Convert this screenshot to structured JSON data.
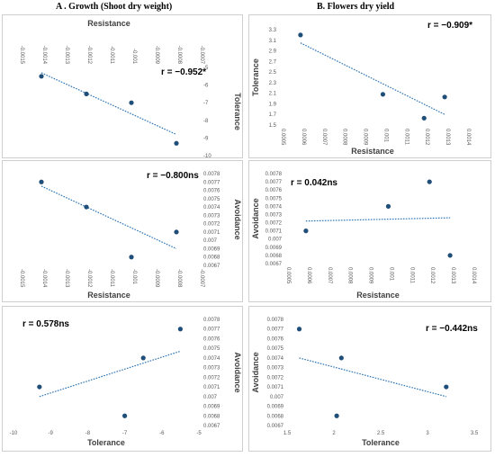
{
  "column_titles": [
    "A . Growth (Shoot dry weight)",
    "B. Flowers dry yield"
  ],
  "colors": {
    "point": "#1f4e79",
    "trend": "#2e75b6",
    "frame": "#cfcfcf",
    "text": "#595959"
  },
  "chart_data": [
    {
      "type": "scatter",
      "title": "",
      "xlabel": "Resistance",
      "ylabel": "Tolerance",
      "xlim": [
        -0.0015,
        -0.0007
      ],
      "ylim": [
        -10,
        -5
      ],
      "x_axis_position": "top",
      "y_axis_position": "right",
      "x_ticks": [
        "-0.0015",
        "-0.0014",
        "-0.0013",
        "-0.0012",
        "-0.0011",
        "-0.001",
        "-0.0009",
        "-0.0008",
        "-0.0007"
      ],
      "y_ticks": [
        "-5",
        "-6",
        "-7",
        "-8",
        "-9",
        "-10"
      ],
      "points": [
        {
          "x": -0.0014,
          "y": -5.5
        },
        {
          "x": -0.0012,
          "y": -6.5
        },
        {
          "x": -0.001,
          "y": -7.0
        },
        {
          "x": -0.0008,
          "y": -9.3
        }
      ],
      "trendline": {
        "x": [
          -0.0014,
          -0.0008
        ],
        "y": [
          -5.3,
          -8.8
        ]
      },
      "annotation": "r = −0.952*",
      "grid": false
    },
    {
      "type": "scatter",
      "title": "",
      "xlabel": "Resistance",
      "ylabel": "Tolerance",
      "xlim": [
        0.0005,
        0.0014
      ],
      "ylim": [
        1.5,
        3.3
      ],
      "x_axis_position": "bottom",
      "y_axis_position": "left",
      "x_ticks": [
        "0.0005",
        "0.0006",
        "0.0007",
        "0.0008",
        "0.0009",
        "0.001",
        "0.0011",
        "0.0012",
        "0.0013",
        "0.0014"
      ],
      "y_ticks": [
        "3.3",
        "3.1",
        "2.9",
        "2.7",
        "2.5",
        "2.3",
        "2.1",
        "1.9",
        "1.7",
        "1.5"
      ],
      "points": [
        {
          "x": 0.0006,
          "y": 3.2
        },
        {
          "x": 0.001,
          "y": 2.08
        },
        {
          "x": 0.0012,
          "y": 1.63
        },
        {
          "x": 0.0013,
          "y": 2.03
        }
      ],
      "trendline": {
        "x": [
          0.0006,
          0.0013
        ],
        "y": [
          3.05,
          1.7
        ]
      },
      "annotation": "r = −0.909*",
      "grid": false
    },
    {
      "type": "scatter",
      "title": "",
      "xlabel": "Resistance",
      "ylabel": "Avoidance",
      "xlim": [
        -0.0015,
        -0.0007
      ],
      "ylim": [
        0.0067,
        0.0078
      ],
      "x_axis_position": "bottom",
      "y_axis_position": "right",
      "x_ticks": [
        "-0.0015",
        "-0.0014",
        "-0.0013",
        "-0.0012",
        "-0.0011",
        "-0.001",
        "-0.0009",
        "-0.0008",
        "-0.0007"
      ],
      "y_ticks": [
        "0.0078",
        "0.0077",
        "0.0076",
        "0.0075",
        "0.0074",
        "0.0073",
        "0.0072",
        "0.0071",
        "0.007",
        "0.0069",
        "0.0068",
        "0.0067"
      ],
      "points": [
        {
          "x": -0.0014,
          "y": 0.0077
        },
        {
          "x": -0.0012,
          "y": 0.0074
        },
        {
          "x": -0.001,
          "y": 0.0068
        },
        {
          "x": -0.0008,
          "y": 0.0071
        }
      ],
      "trendline": {
        "x": [
          -0.0014,
          -0.0008
        ],
        "y": [
          0.00765,
          0.0069
        ]
      },
      "annotation": "r = −0.800ns",
      "grid": false
    },
    {
      "type": "scatter",
      "title": "",
      "xlabel": "Resistance",
      "ylabel": "Avoidance",
      "xlim": [
        0.0005,
        0.0014
      ],
      "ylim": [
        0.0067,
        0.0078
      ],
      "x_axis_position": "bottom",
      "y_axis_position": "left",
      "x_ticks": [
        "0.0005",
        "0.0006",
        "0.0007",
        "0.0008",
        "0.0009",
        "0.001",
        "0.0011",
        "0.0012",
        "0.0013",
        "0.0014"
      ],
      "y_ticks": [
        "0.0078",
        "0.0077",
        "0.0076",
        "0.0075",
        "0.0074",
        "0.0073",
        "0.0072",
        "0.0071",
        "0.007",
        "0.0069",
        "0.0068",
        "0.0067"
      ],
      "points": [
        {
          "x": 0.0006,
          "y": 0.0071
        },
        {
          "x": 0.001,
          "y": 0.0074
        },
        {
          "x": 0.0012,
          "y": 0.0077
        },
        {
          "x": 0.0013,
          "y": 0.0068
        }
      ],
      "trendline": {
        "x": [
          0.0006,
          0.0013
        ],
        "y": [
          0.00722,
          0.00726
        ]
      },
      "annotation": "r = 0.042ns",
      "grid": false
    },
    {
      "type": "scatter",
      "title": "",
      "xlabel": "Tolerance",
      "ylabel": "Avoidance",
      "xlim": [
        -10,
        -5
      ],
      "ylim": [
        0.0067,
        0.0078
      ],
      "x_axis_position": "bottom",
      "y_axis_position": "right",
      "x_ticks": [
        "-10",
        "-9",
        "-8",
        "-7",
        "-6",
        "-5"
      ],
      "y_ticks": [
        "0.0078",
        "0.0077",
        "0.0076",
        "0.0075",
        "0.0074",
        "0.0073",
        "0.0072",
        "0.0071",
        "0.007",
        "0.0069",
        "0.0068",
        "0.0067"
      ],
      "points": [
        {
          "x": -9.3,
          "y": 0.0071
        },
        {
          "x": -7.0,
          "y": 0.0068
        },
        {
          "x": -6.5,
          "y": 0.0074
        },
        {
          "x": -5.5,
          "y": 0.0077
        }
      ],
      "trendline": {
        "x": [
          -9.3,
          -5.5
        ],
        "y": [
          0.007,
          0.00747
        ]
      },
      "annotation": "r = 0.578ns",
      "grid": false
    },
    {
      "type": "scatter",
      "title": "",
      "xlabel": "Tolerance",
      "ylabel": "Avoidance",
      "xlim": [
        1.5,
        3.5
      ],
      "ylim": [
        0.0067,
        0.0078
      ],
      "x_axis_position": "bottom",
      "y_axis_position": "left",
      "x_ticks": [
        "1.5",
        "2",
        "2.5",
        "3",
        "3.5"
      ],
      "y_ticks": [
        "0.0078",
        "0.0077",
        "0.0076",
        "0.0075",
        "0.0074",
        "0.0073",
        "0.0072",
        "0.0071",
        "0.007",
        "0.0069",
        "0.0068",
        "0.0067"
      ],
      "points": [
        {
          "x": 1.63,
          "y": 0.0077
        },
        {
          "x": 2.03,
          "y": 0.0068
        },
        {
          "x": 2.08,
          "y": 0.0074
        },
        {
          "x": 3.2,
          "y": 0.0071
        }
      ],
      "trendline": {
        "x": [
          1.63,
          3.2
        ],
        "y": [
          0.0074,
          0.007
        ]
      },
      "annotation": "r = −0.442ns",
      "grid": false
    }
  ]
}
